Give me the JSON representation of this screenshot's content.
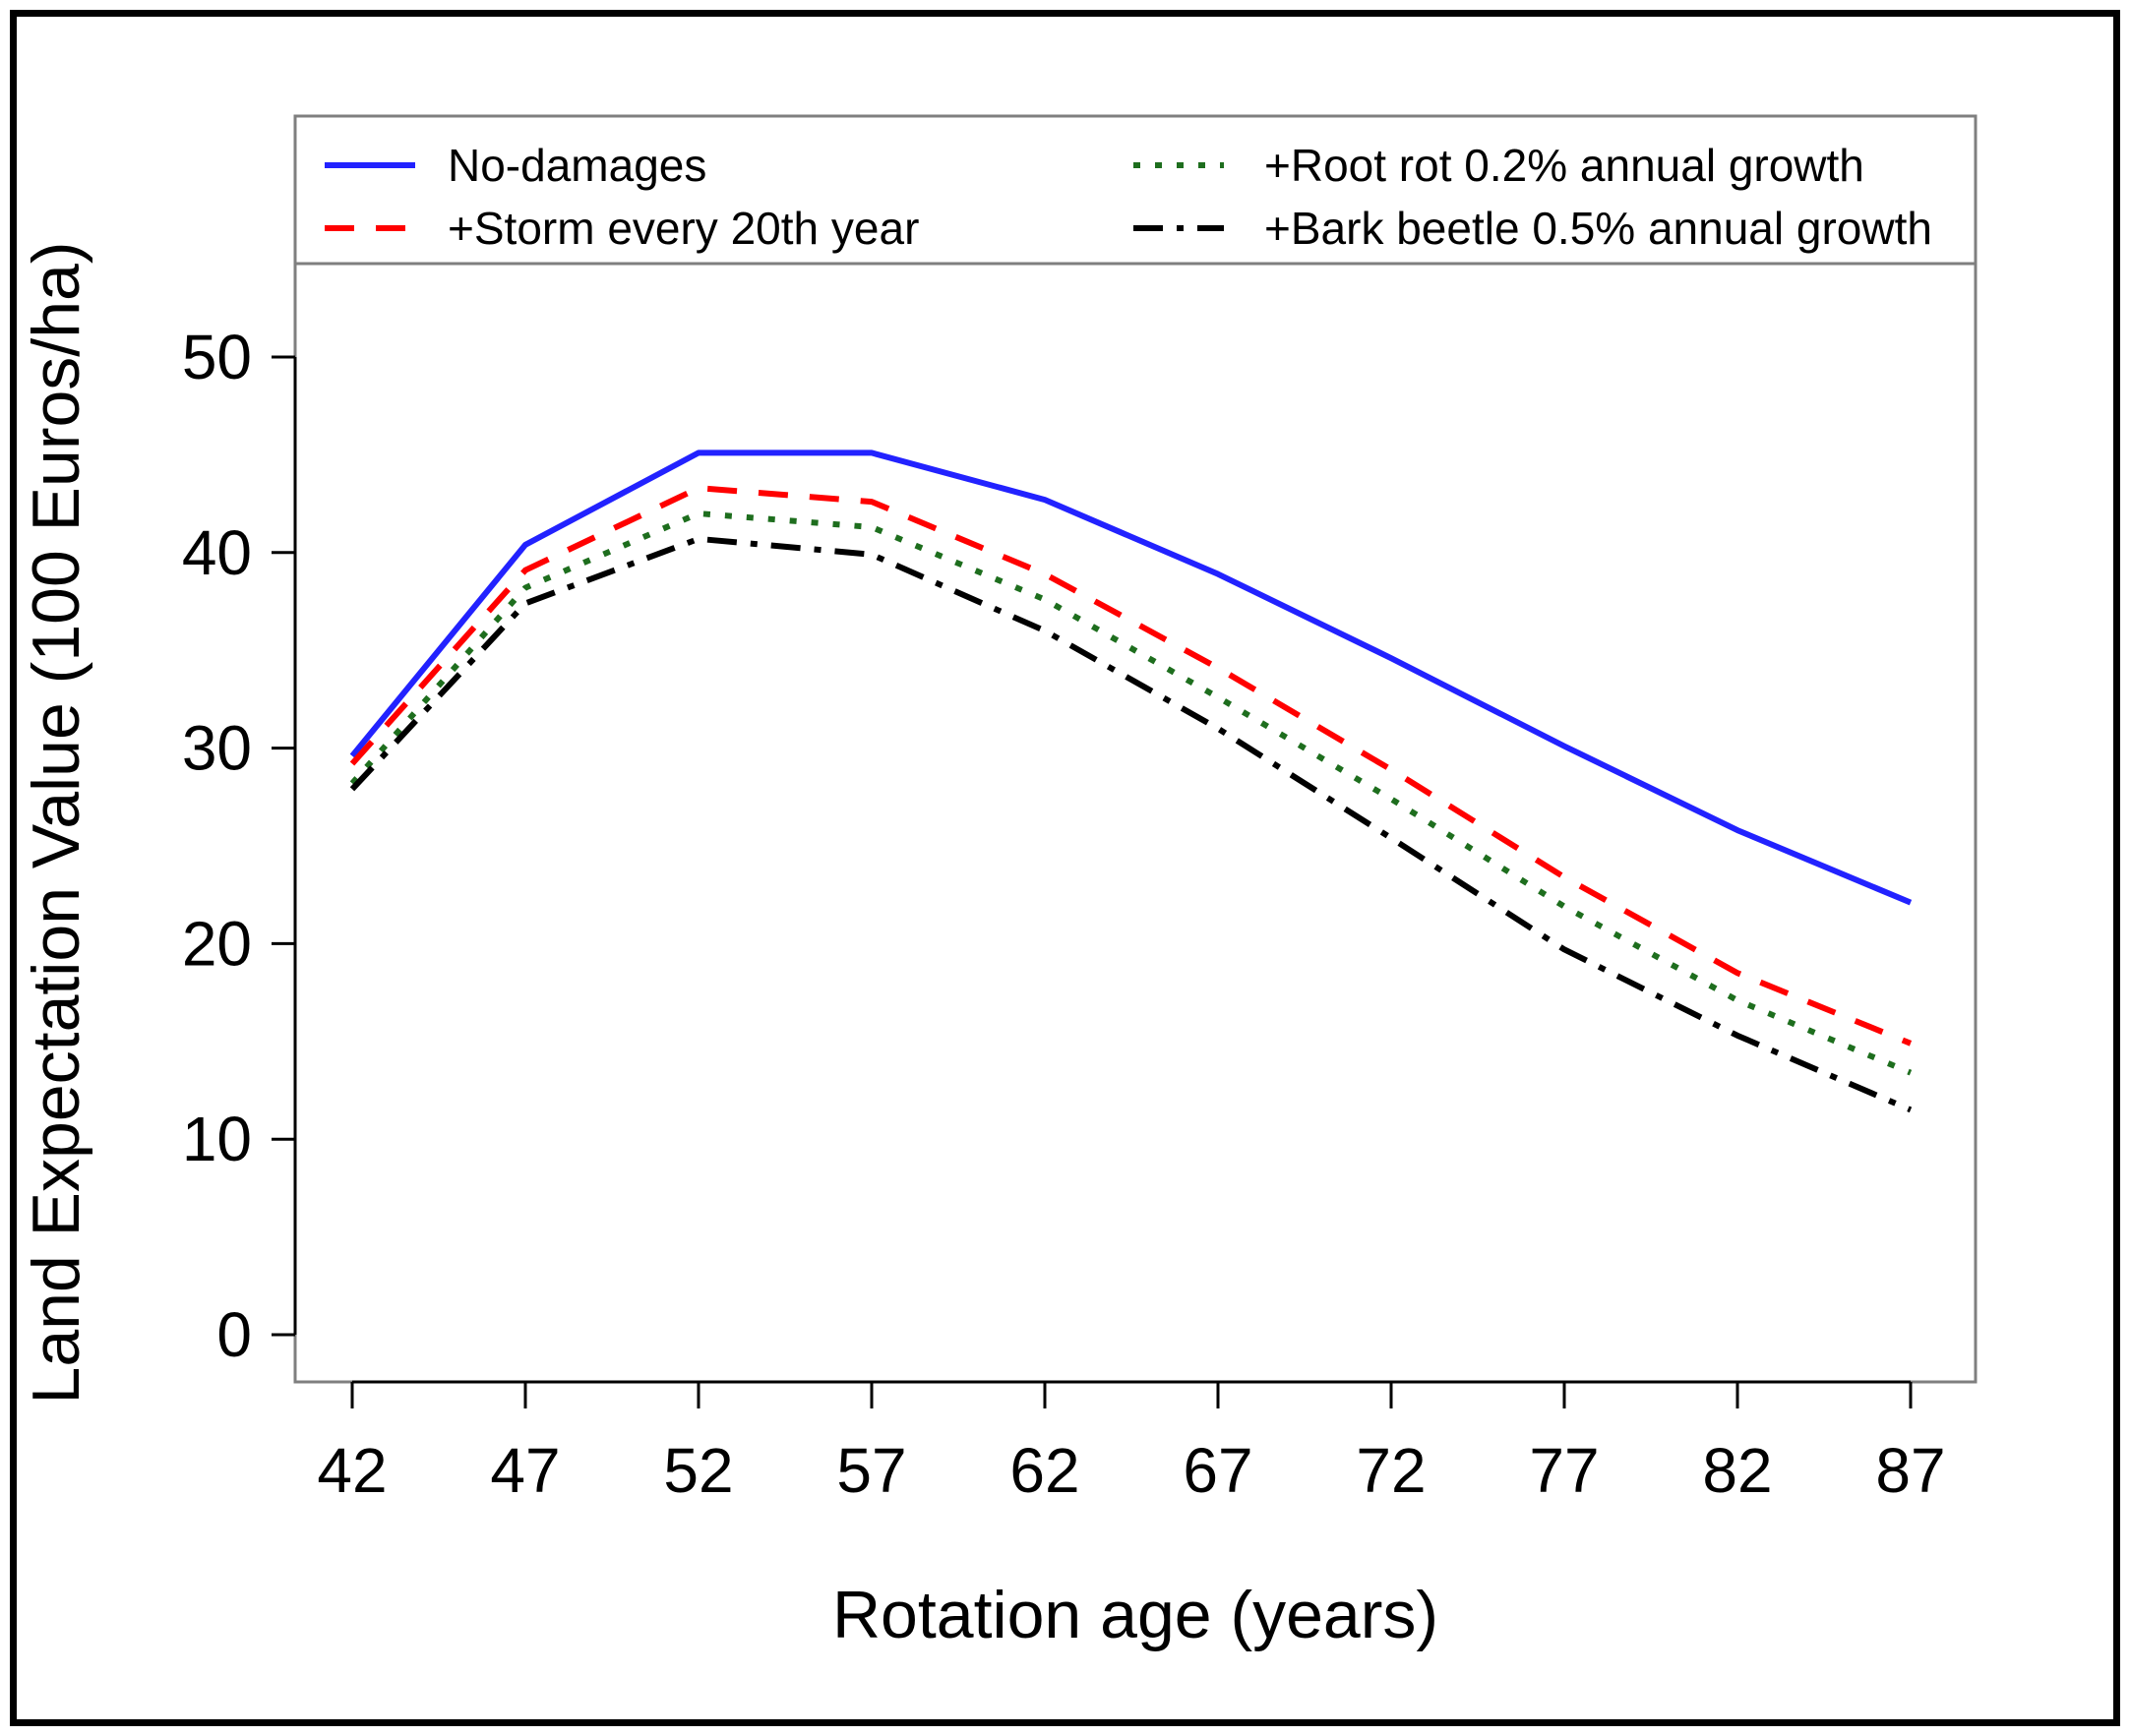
{
  "chart_data": {
    "type": "line",
    "title": "",
    "xlabel": "Rotation age (years)",
    "ylabel": "Land Expectation Value (100 Euros/ha)",
    "x": [
      42,
      47,
      52,
      57,
      62,
      67,
      72,
      77,
      82,
      87
    ],
    "xticks": [
      42,
      47,
      52,
      57,
      62,
      67,
      72,
      77,
      82,
      87
    ],
    "yticks": [
      0,
      10,
      20,
      30,
      40,
      50
    ],
    "xlim": [
      40.3,
      89.0
    ],
    "ylim": [
      -2.4,
      54.8
    ],
    "grid": false,
    "legend_position": "top-inside framed box, two columns",
    "frame_color": "#7f7f7f",
    "axis_color": "#000000",
    "background_color": "#ffffff",
    "series": [
      {
        "name": "No-damages",
        "color": "#2222ff",
        "style": "solid",
        "legend_column": 0,
        "values": [
          29.6,
          40.4,
          45.1,
          45.1,
          42.7,
          38.9,
          34.6,
          30.1,
          25.8,
          22.1
        ]
      },
      {
        "name": "+Storm every 20th year",
        "color": "#ff0000",
        "style": "dashed",
        "legend_column": 0,
        "values": [
          29.2,
          39.1,
          43.3,
          42.6,
          38.9,
          34.1,
          28.9,
          23.4,
          18.5,
          14.9
        ]
      },
      {
        "name": "+Root rot 0.2% annual growth",
        "color": "#1e6e1e",
        "style": "dotted",
        "legend_column": 1,
        "values": [
          28.2,
          38.2,
          42.0,
          41.3,
          37.6,
          32.6,
          27.4,
          21.9,
          17.1,
          13.4
        ]
      },
      {
        "name": "+Bark beetle 0.5% annual growth",
        "color": "#000000",
        "style": "dashdot",
        "legend_column": 1,
        "values": [
          27.9,
          37.4,
          40.7,
          39.9,
          36.0,
          31.0,
          25.4,
          19.7,
          15.3,
          11.5
        ]
      }
    ]
  }
}
